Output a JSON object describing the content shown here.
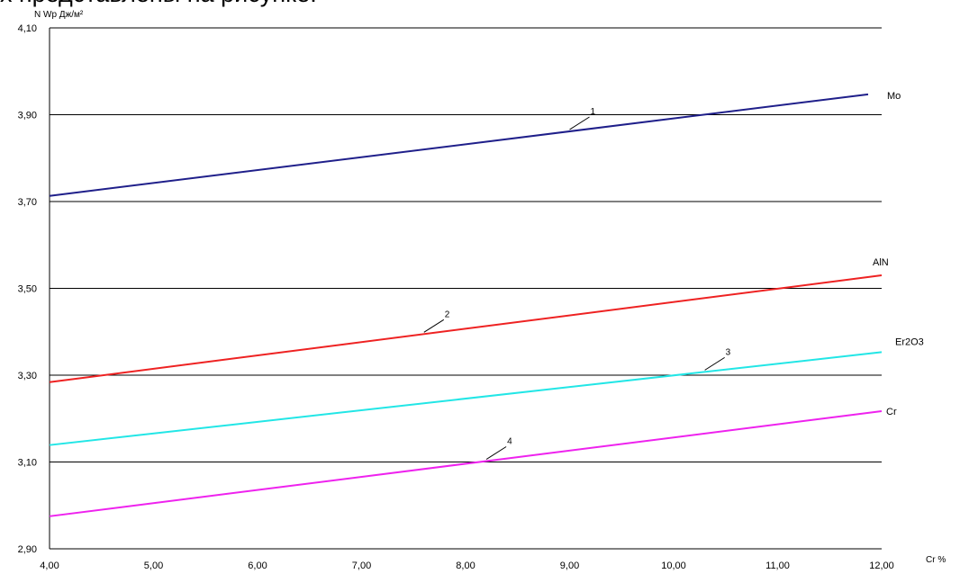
{
  "top_caption": "х представлены на рисунке:",
  "chart_data": {
    "type": "line",
    "xlabel": "Cr  %",
    "ylabel": "N Wp  Дж/м²",
    "xlim": [
      4,
      12
    ],
    "ylim": [
      2.9,
      4.1
    ],
    "x_ticks": [
      "4,00",
      "5,00",
      "6,00",
      "7,00",
      "8,00",
      "9,00",
      "10,00",
      "11,00",
      "12,00"
    ],
    "y_ticks": [
      "2,90",
      "3,10",
      "3,30",
      "3,50",
      "3,70",
      "3,90",
      "4,10"
    ],
    "grid": "horizontal",
    "series": [
      {
        "name": "Mo",
        "marker": "1",
        "color": "#1f1f8a",
        "x": [
          4,
          11.87
        ],
        "values": [
          3.713,
          3.947
        ]
      },
      {
        "name": "AlN",
        "marker": "2",
        "color": "#ee2222",
        "x": [
          4,
          12
        ],
        "values": [
          3.284,
          3.53
        ]
      },
      {
        "name": "Er2O3",
        "marker": "3",
        "color": "#22e6e6",
        "x": [
          4,
          12
        ],
        "values": [
          3.139,
          3.353
        ]
      },
      {
        "name": "Cr",
        "marker": "4",
        "color": "#ee22ee",
        "x": [
          4,
          12
        ],
        "values": [
          2.975,
          3.217
        ]
      }
    ]
  }
}
